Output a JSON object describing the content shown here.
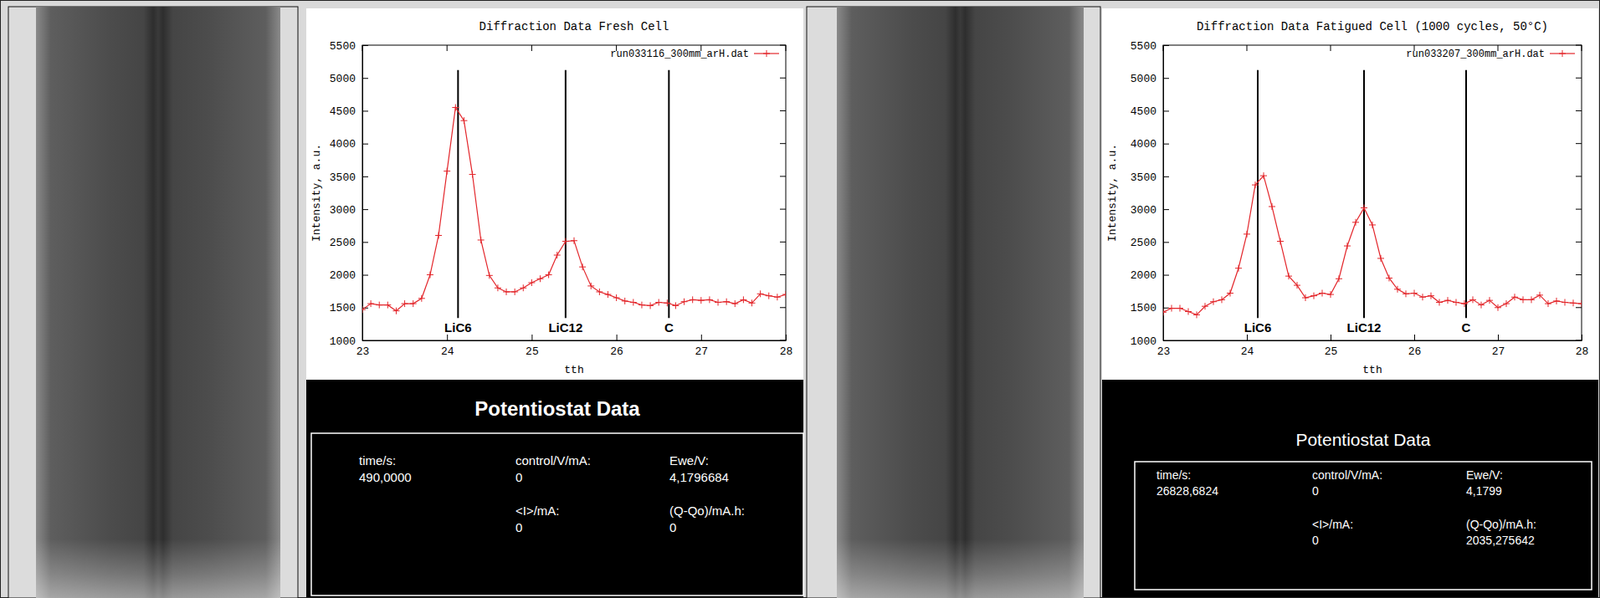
{
  "chart_data": [
    {
      "type": "line",
      "title": "Diffraction Data Fresh Cell",
      "x_label": "tth",
      "y_label": "Intensity, a.u.",
      "x": [
        23.0,
        23.1,
        23.2,
        23.3,
        23.4,
        23.5,
        23.6,
        23.7,
        23.8,
        23.9,
        24.0,
        24.1,
        24.2,
        24.3,
        24.4,
        24.5,
        24.6,
        24.7,
        24.8,
        24.9,
        25.0,
        25.1,
        25.2,
        25.3,
        25.4,
        25.5,
        25.6,
        25.7,
        25.8,
        25.9,
        26.0,
        26.1,
        26.2,
        26.3,
        26.4,
        26.5,
        26.6,
        26.7,
        26.8,
        26.9,
        27.0,
        27.1,
        27.2,
        27.3,
        27.4,
        27.5,
        27.6,
        27.7,
        27.8,
        27.9,
        28.0
      ],
      "series": [
        {
          "name": "run033116_300mm_arH.dat",
          "color": "#e3262b",
          "marker": "plus",
          "values": [
            1470,
            1560,
            1540,
            1540,
            1450,
            1560,
            1560,
            1640,
            2000,
            2600,
            3580,
            4550,
            4350,
            3530,
            2530,
            1990,
            1800,
            1740,
            1740,
            1800,
            1880,
            1940,
            2000,
            2300,
            2510,
            2520,
            2120,
            1830,
            1740,
            1700,
            1650,
            1600,
            1580,
            1540,
            1530,
            1580,
            1570,
            1530,
            1590,
            1620,
            1610,
            1620,
            1580,
            1590,
            1560,
            1620,
            1570,
            1710,
            1680,
            1660,
            1700
          ]
        }
      ],
      "xlim": [
        23,
        28
      ],
      "ylim": [
        1000,
        5500
      ],
      "xticks": [
        23,
        24,
        25,
        26,
        27,
        28
      ],
      "yticks": [
        1000,
        1500,
        2000,
        2500,
        3000,
        3500,
        4000,
        4500,
        5000,
        5500
      ],
      "grid": false,
      "legend": "top-right",
      "annotations": [
        {
          "label": "LiC6",
          "x": 24.13,
          "y0": 1340,
          "y1": 5120
        },
        {
          "label": "LiC12",
          "x": 25.4,
          "y0": 1340,
          "y1": 5120
        },
        {
          "label": "C",
          "x": 26.62,
          "y0": 1340,
          "y1": 5120
        }
      ]
    },
    {
      "type": "line",
      "title": "Diffraction Data Fatigued Cell (1000 cycles, 50°C)",
      "x_label": "tth",
      "y_label": "Intensity, a.u.",
      "x": [
        23.0,
        23.1,
        23.2,
        23.3,
        23.4,
        23.5,
        23.6,
        23.7,
        23.8,
        23.9,
        24.0,
        24.1,
        24.2,
        24.3,
        24.4,
        24.5,
        24.6,
        24.7,
        24.8,
        24.9,
        25.0,
        25.1,
        25.2,
        25.3,
        25.4,
        25.5,
        25.6,
        25.7,
        25.8,
        25.9,
        26.0,
        26.1,
        26.2,
        26.3,
        26.4,
        26.5,
        26.6,
        26.7,
        26.8,
        26.9,
        27.0,
        27.1,
        27.2,
        27.3,
        27.4,
        27.5,
        27.6,
        27.7,
        27.8,
        27.9,
        28.0
      ],
      "series": [
        {
          "name": "run033207_300mm_arH.dat",
          "color": "#e3262b",
          "marker": "plus",
          "values": [
            1430,
            1490,
            1490,
            1440,
            1390,
            1520,
            1590,
            1620,
            1720,
            2100,
            2620,
            3370,
            3510,
            3040,
            2510,
            1980,
            1840,
            1650,
            1680,
            1720,
            1700,
            1940,
            2440,
            2800,
            3020,
            2760,
            2250,
            1950,
            1780,
            1710,
            1720,
            1660,
            1680,
            1580,
            1610,
            1580,
            1560,
            1620,
            1540,
            1610,
            1500,
            1560,
            1660,
            1620,
            1620,
            1690,
            1560,
            1600,
            1580,
            1570,
            1560
          ]
        }
      ],
      "xlim": [
        23,
        28
      ],
      "ylim": [
        1000,
        5500
      ],
      "xticks": [
        23,
        24,
        25,
        26,
        27,
        28
      ],
      "yticks": [
        1000,
        1500,
        2000,
        2500,
        3000,
        3500,
        4000,
        4500,
        5000,
        5500
      ],
      "grid": false,
      "legend": "top-right",
      "annotations": [
        {
          "label": "LiC6",
          "x": 24.13,
          "y0": 1340,
          "y1": 5120
        },
        {
          "label": "LiC12",
          "x": 25.4,
          "y0": 1340,
          "y1": 5120
        },
        {
          "label": "C",
          "x": 26.62,
          "y0": 1340,
          "y1": 5120
        }
      ]
    }
  ],
  "potentiostat": [
    {
      "title": "Potentiostat Data",
      "fields": [
        {
          "label": "time/s:",
          "value": "490,0000"
        },
        {
          "label": "control/V/mA:",
          "value": "0"
        },
        {
          "label": "Ewe/V:",
          "value": "4,1796684"
        },
        {
          "label": "<I>/mA:",
          "value": "0"
        },
        {
          "label": "(Q-Qo)/mA.h:",
          "value": "0"
        }
      ]
    },
    {
      "title": "Potentiostat Data",
      "fields": [
        {
          "label": "time/s:",
          "value": "26828,6824"
        },
        {
          "label": "control/V/mA:",
          "value": "0"
        },
        {
          "label": "Ewe/V:",
          "value": "4,1799"
        },
        {
          "label": "<I>/mA:",
          "value": "0"
        },
        {
          "label": "(Q-Qo)/mA.h:",
          "value": "2035,275642"
        }
      ]
    }
  ]
}
